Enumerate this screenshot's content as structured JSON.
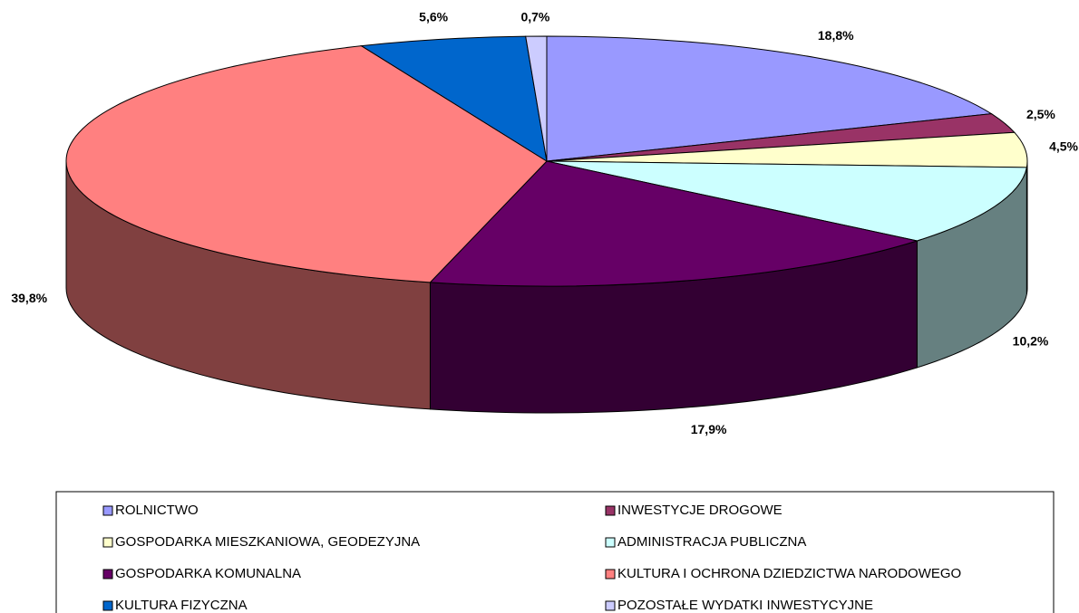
{
  "chart_data": {
    "type": "pie",
    "categories": [
      "ROLNICTWO",
      "INWESTYCJE DROGOWE",
      "GOSPODARKA MIESZKANIOWA, GEODEZYJNA",
      "ADMINISTRACJA PUBLICZNA",
      "GOSPODARKA KOMUNALNA",
      "KULTURA I OCHRONA DZIEDZICTWA NARODOWEGO",
      "KULTURA FIZYCZNA",
      "POZOSTAŁE WYDATKI INWESTYCYJNE"
    ],
    "values": [
      18.8,
      2.5,
      4.5,
      10.2,
      17.9,
      39.8,
      5.6,
      0.7
    ],
    "value_labels": [
      "18,8%",
      "2,5%",
      "4,5%",
      "10,2%",
      "17,9%",
      "39,8%",
      "5,6%",
      "0,7%"
    ],
    "colors": [
      "#9999ff",
      "#993366",
      "#ffffcc",
      "#ccffff",
      "#660066",
      "#ff8080",
      "#0066cc",
      "#ccccff"
    ]
  }
}
